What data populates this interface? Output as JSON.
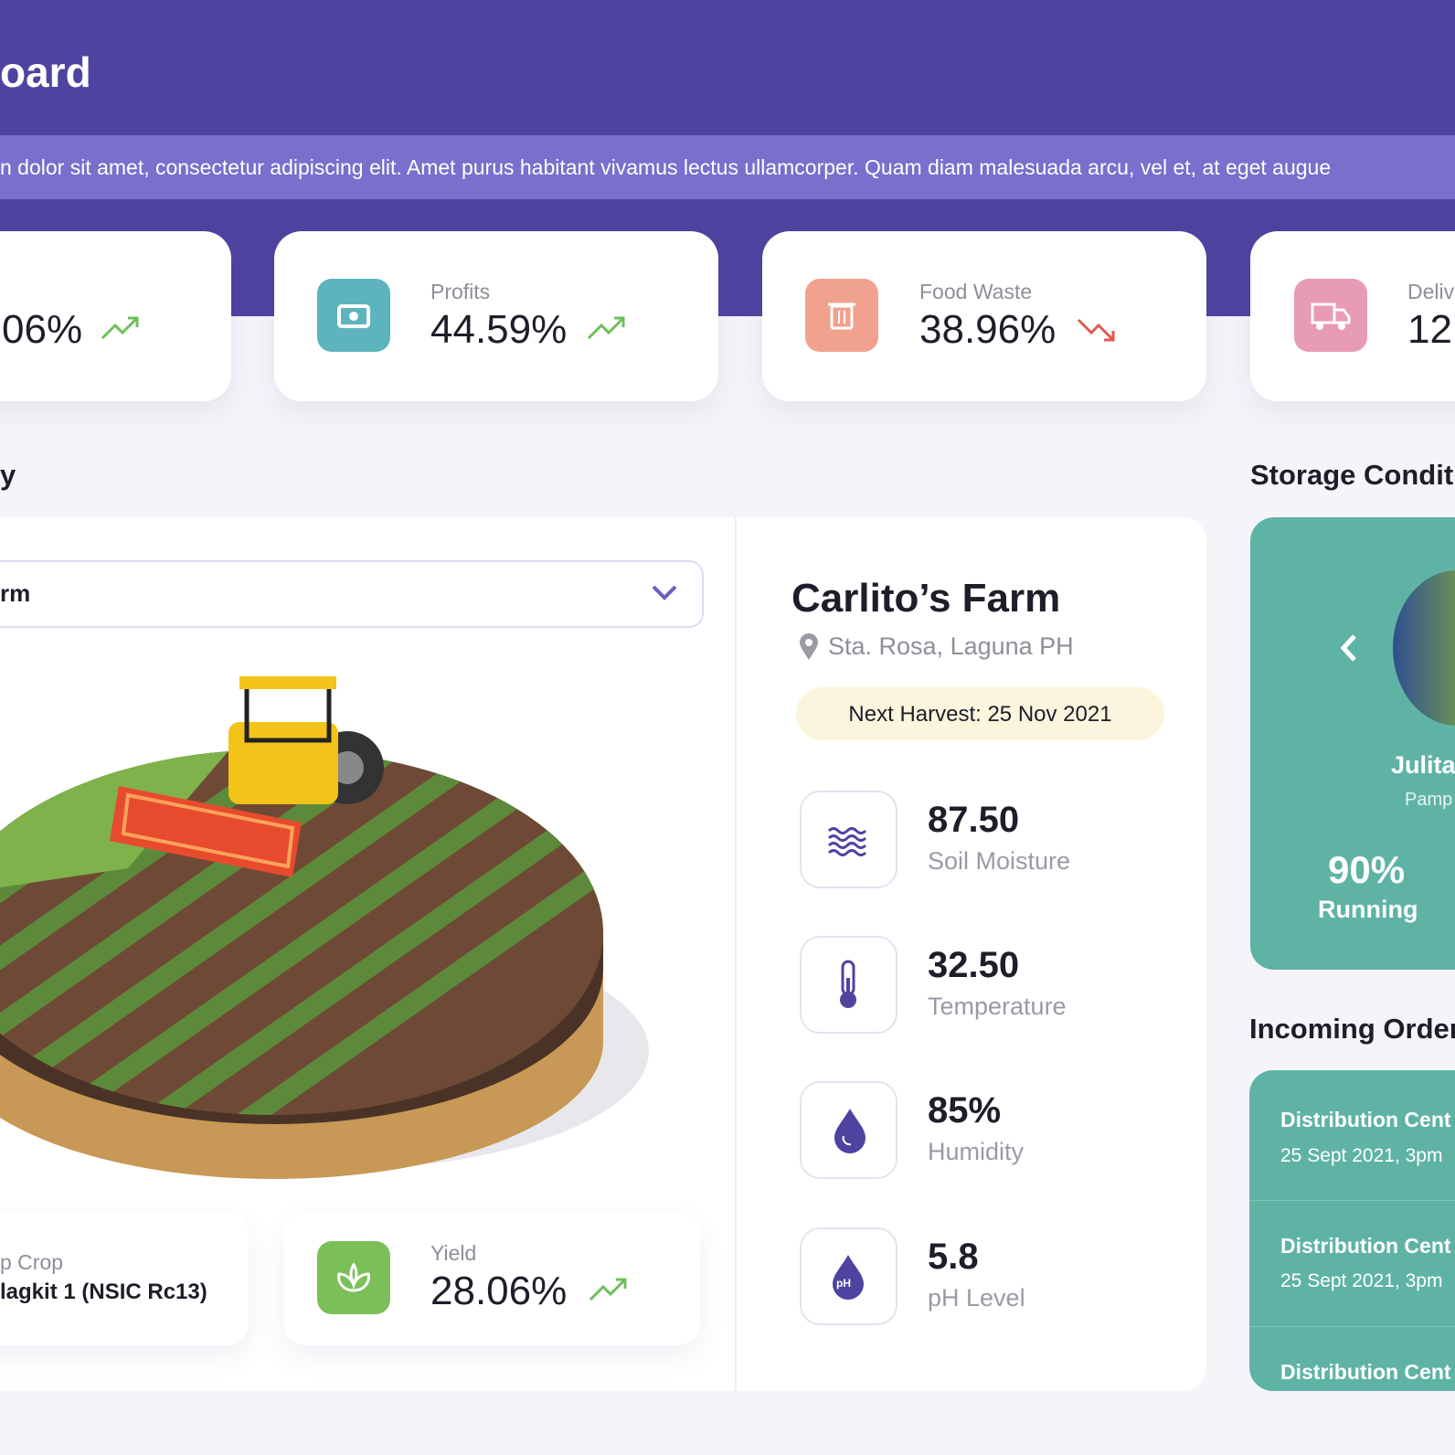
{
  "header": {
    "title": "oard",
    "banner": "n dolor sit amet, consectetur adipiscing elit. Amet purus habitant vivamus lectus ullamcorper. Quam diam malesuada arcu, vel et, at eget augue"
  },
  "stats": [
    {
      "value": "06%"
    },
    {
      "label": "Profits",
      "value": "44.59%"
    },
    {
      "label": "Food Waste",
      "value": "38.96%"
    },
    {
      "label": "Deliv",
      "value": "12"
    }
  ],
  "sections": {
    "farm": "y",
    "storage": "Storage Condit",
    "orders": "Incoming Order"
  },
  "farm": {
    "dropdown": "rm",
    "name": "Carlito’s Farm",
    "location": "Sta. Rosa, Laguna PH",
    "harvest": "Next Harvest: 25 Nov 2021",
    "metrics": [
      {
        "value": "87.50",
        "label": "Soil Moisture"
      },
      {
        "value": "32.50",
        "label": "Temperature"
      },
      {
        "value": "85%",
        "label": "Humidity"
      },
      {
        "value": "5.8",
        "label": "pH Level",
        "icon": "pH"
      }
    ],
    "crop": {
      "label": "p Crop",
      "value": "lagkit 1 (NSIC Rc13)"
    },
    "yield": {
      "label": "Yield",
      "value": "28.06%"
    }
  },
  "storage": {
    "name": "Julita",
    "place": "Pamp",
    "value": "90%",
    "status": "Running"
  },
  "orders": [
    {
      "name": "Distribution Cent",
      "date": "25 Sept 2021, 3pm"
    },
    {
      "name": "Distribution Cent",
      "date": "25 Sept 2021, 3pm"
    },
    {
      "name": "Distribution Cent"
    }
  ]
}
